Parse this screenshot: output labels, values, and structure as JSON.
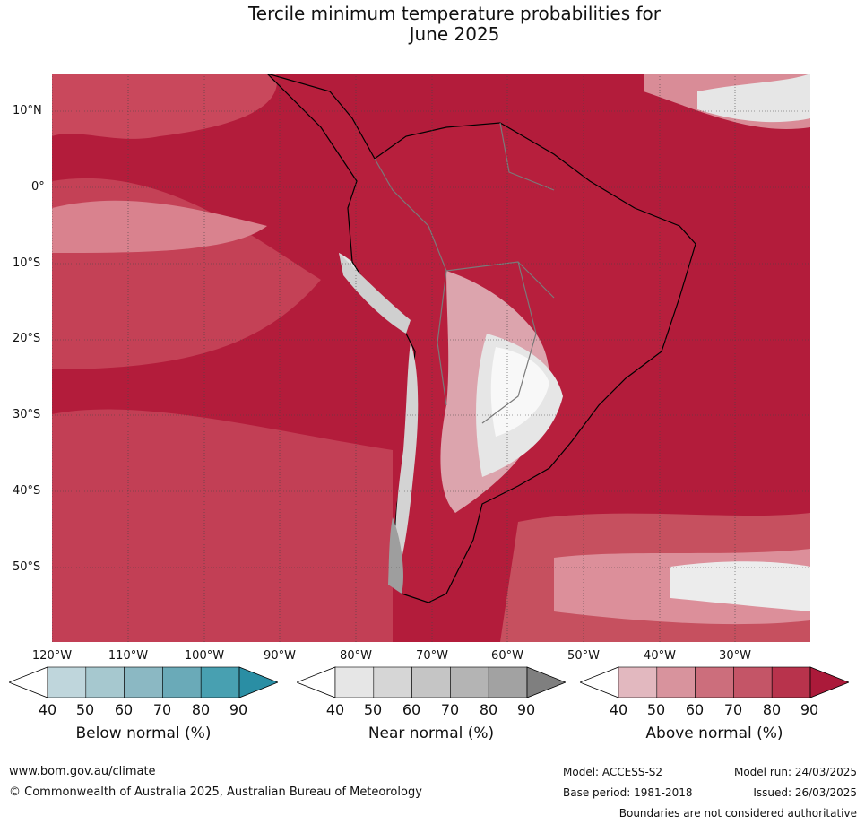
{
  "title_line1": "Tercile minimum temperature probabilities for",
  "title_line2": "June 2025",
  "map": {
    "lat_labels": [
      "10°N",
      "0°",
      "10°S",
      "20°S",
      "30°S",
      "40°S",
      "50°S"
    ],
    "lon_labels": [
      "120°W",
      "110°W",
      "100°W",
      "90°W",
      "80°W",
      "70°W",
      "60°W",
      "50°W",
      "40°W",
      "30°W"
    ],
    "gridlines": true,
    "colors": {
      "above_dominant": "#b31c3b",
      "above_mid": "#c9485c",
      "above_light": "#d9828e",
      "near_light": "#e6e6e6",
      "near_dark": "#9e9e9e",
      "coastline": "#000000",
      "borders": "#7a7a7a"
    }
  },
  "legends": [
    {
      "name": "Below normal (%)",
      "ticks": [
        "40",
        "50",
        "60",
        "70",
        "80",
        "90"
      ],
      "colors": [
        "#ffffff",
        "#bfd6dc",
        "#a6c8cf",
        "#8bb8c3",
        "#6aaab8",
        "#48a0b1",
        "#2a8ea4"
      ]
    },
    {
      "name": "Near normal (%)",
      "ticks": [
        "40",
        "50",
        "60",
        "70",
        "80",
        "90"
      ],
      "colors": [
        "#ffffff",
        "#e6e6e6",
        "#d6d6d6",
        "#c5c5c5",
        "#b4b4b4",
        "#a2a2a2",
        "#7f7f7f"
      ]
    },
    {
      "name": "Above normal (%)",
      "ticks": [
        "40",
        "50",
        "60",
        "70",
        "80",
        "90"
      ],
      "colors": [
        "#ffffff",
        "#e2b8bf",
        "#d8939d",
        "#cc6e7c",
        "#c45567",
        "#b8334c",
        "#ab1a3a"
      ]
    }
  ],
  "footer": {
    "url": "www.bom.gov.au/climate",
    "copyright": "© Commonwealth of Australia 2025, Australian Bureau of Meteorology",
    "model": "Model: ACCESS-S2",
    "model_run": "Model run: 24/03/2025",
    "base_period": "Base period: 1981-2018",
    "issued": "Issued: 26/03/2025",
    "disclaimer": "Boundaries are not considered authoritative"
  }
}
